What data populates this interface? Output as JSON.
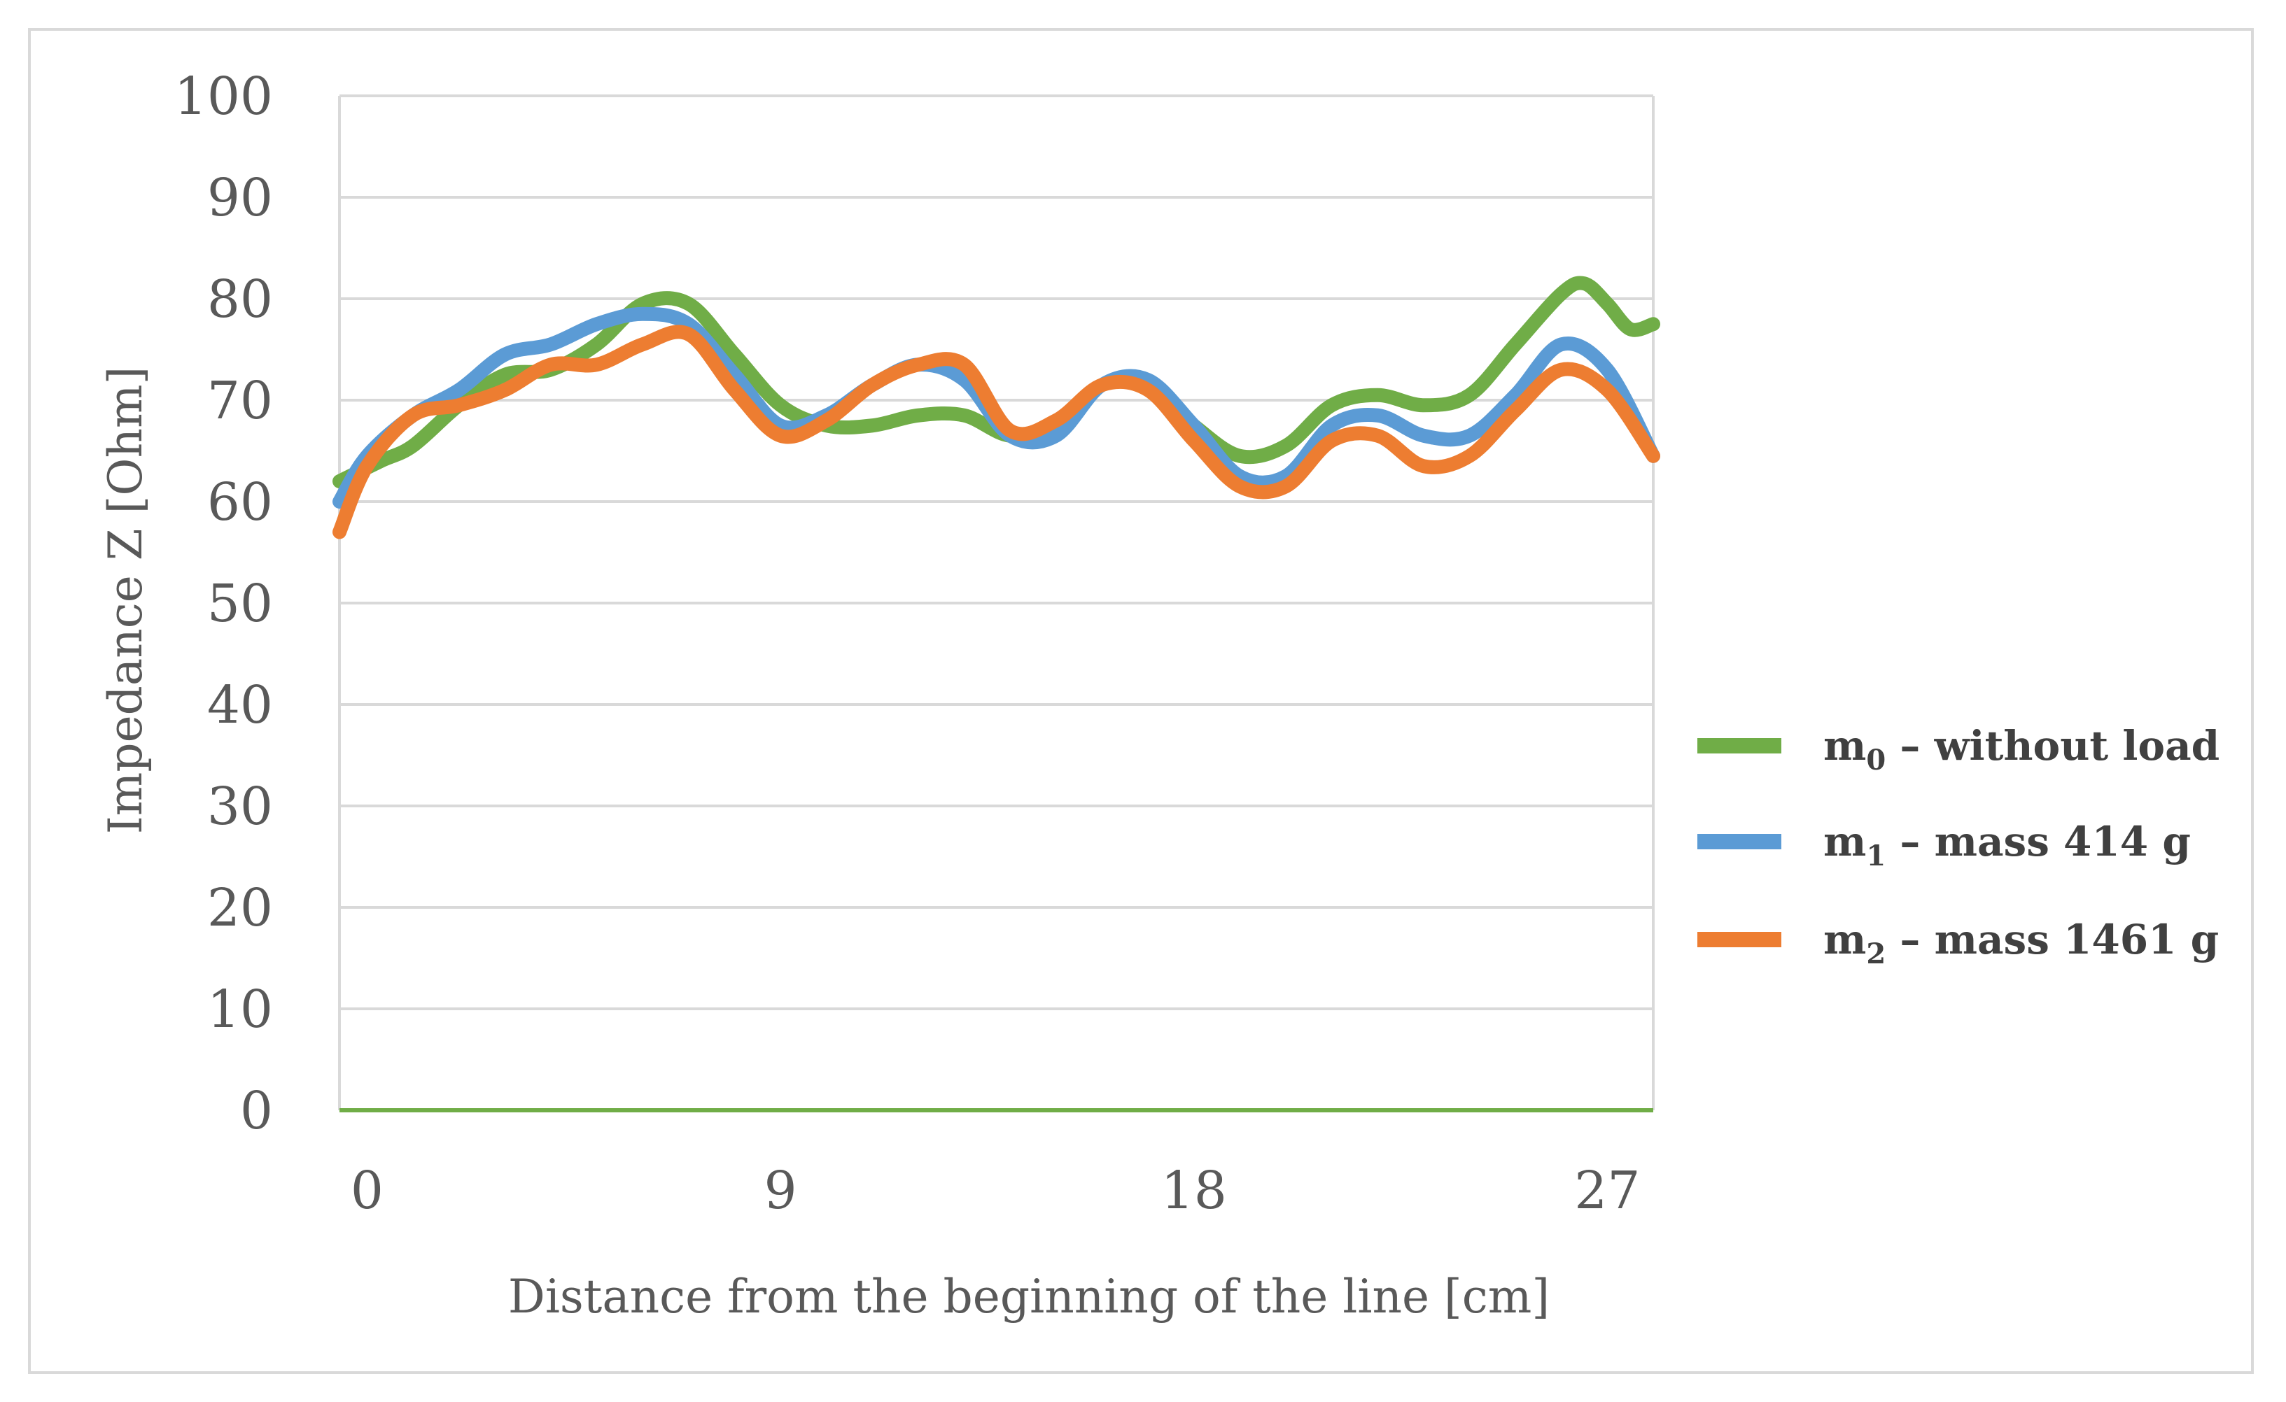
{
  "chart_data": {
    "type": "line",
    "title": "",
    "xlabel": "Distance from the beginning of the line [cm]",
    "ylabel": "Impedance Z [Ohm]",
    "xlim": [
      -0.6,
      28.0
    ],
    "ylim": [
      0,
      100
    ],
    "x_ticks": [
      0,
      9,
      18,
      27
    ],
    "x_tick_labels": [
      "0",
      "9",
      "18",
      "27"
    ],
    "y_ticks": [
      0,
      10,
      20,
      30,
      40,
      50,
      60,
      70,
      80,
      90,
      100
    ],
    "y_tick_labels": [
      "0",
      "10",
      "20",
      "30",
      "40",
      "50",
      "60",
      "70",
      "80",
      "90",
      "100"
    ],
    "grid": true,
    "legend_position": "right",
    "series": [
      {
        "name": "m0 – without load",
        "legend_main": "m",
        "legend_sub": "0",
        "legend_rest": " – without load",
        "color": "#70ad47",
        "x": [
          -0.6,
          0.3,
          1.0,
          2.0,
          3.0,
          4.0,
          5.0,
          6.0,
          7.0,
          8.0,
          9.0,
          10.0,
          11.0,
          12.0,
          13.0,
          14.0,
          15.0,
          16.0,
          17.0,
          18.0,
          19.0,
          20.0,
          21.0,
          22.0,
          23.0,
          24.0,
          25.0,
          26.0,
          26.5,
          27.0,
          27.5,
          28.0
        ],
        "y": [
          62,
          64,
          65.5,
          69.5,
          72.5,
          73,
          75.5,
          79.5,
          79.5,
          74.5,
          69.5,
          67.5,
          67.5,
          68.5,
          68.5,
          66.5,
          67.5,
          71.5,
          71.5,
          67.5,
          64.5,
          65.5,
          69.5,
          70.5,
          69.5,
          70.5,
          75.5,
          80.5,
          81.5,
          79.5,
          77,
          77.5
        ]
      },
      {
        "name": "m1 – mass 414 g",
        "legend_main": "m",
        "legend_sub": "1",
        "legend_rest": " – mass 414 g",
        "color": "#5b9bd5",
        "x": [
          -0.6,
          0.0,
          1.0,
          2.0,
          3.0,
          4.0,
          5.0,
          6.0,
          7.0,
          8.0,
          9.0,
          10.0,
          11.0,
          12.0,
          13.0,
          14.0,
          15.0,
          16.0,
          17.0,
          18.0,
          19.0,
          20.0,
          21.0,
          22.0,
          23.0,
          24.0,
          25.0,
          26.0,
          27.0,
          28.0
        ],
        "y": [
          60,
          64.5,
          68.5,
          71,
          74.5,
          75.5,
          77.5,
          78.5,
          77.5,
          72.5,
          67.5,
          68.5,
          71.5,
          73.5,
          72,
          66.5,
          66.5,
          71.5,
          72,
          67.5,
          62.5,
          62.5,
          67.5,
          68.5,
          66.5,
          66.5,
          70.5,
          75.5,
          73,
          64.5
        ]
      },
      {
        "name": "m2 – mass 1461 g",
        "legend_main": "m",
        "legend_sub": "2",
        "legend_rest": " – mass 1461 g",
        "color": "#ed7d31",
        "x": [
          -0.6,
          0.0,
          1.0,
          2.0,
          3.0,
          4.0,
          5.0,
          6.0,
          7.0,
          8.0,
          9.0,
          10.0,
          11.0,
          12.0,
          13.0,
          14.0,
          15.0,
          16.0,
          17.0,
          18.0,
          19.0,
          20.0,
          21.0,
          22.0,
          23.0,
          24.0,
          25.0,
          26.0,
          27.0,
          28.0
        ],
        "y": [
          57,
          63.5,
          68.5,
          69.5,
          71,
          73.5,
          73.5,
          75.5,
          76.5,
          71,
          66.5,
          68,
          71.5,
          73.5,
          73.5,
          67,
          68,
          71.5,
          71,
          66,
          61.5,
          61.5,
          66,
          66.5,
          63.5,
          64.5,
          69,
          73,
          71,
          64.5
        ]
      }
    ]
  }
}
